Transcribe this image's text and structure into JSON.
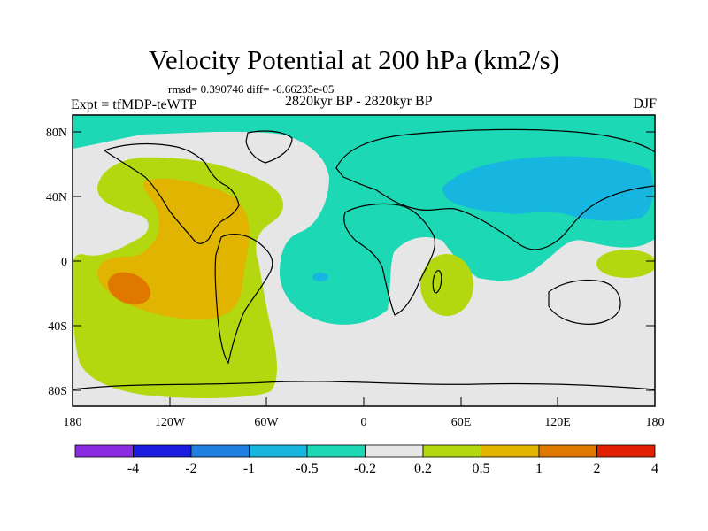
{
  "title": "Velocity Potential at 200 hPa (km2/s)",
  "stats": "rmsd= 0.390746 diff= -6.66235e-05",
  "experiment": "Expt = tfMDP-teWTP",
  "period": "2820kyr BP - 2820kyr BP",
  "season": "DJF",
  "map": {
    "projection": "cylindrical equidistant",
    "lon_range": [
      -180,
      180
    ],
    "lat_range": [
      -90,
      90
    ],
    "lat_tick_labels": [
      "80N",
      "40N",
      "0",
      "40S",
      "80S"
    ],
    "lon_tick_labels": [
      "180",
      "120W",
      "60W",
      "0",
      "60E",
      "120E",
      "180"
    ]
  },
  "colorbar": {
    "boundary_labels": [
      "-4",
      "-2",
      "-1",
      "-0.5",
      "-0.2",
      "0.2",
      "0.5",
      "1",
      "2",
      "4"
    ],
    "colors": [
      "#8a2be2",
      "#1c1ce0",
      "#1e7fe0",
      "#17b6e0",
      "#1cd8b4",
      "#e6e6e6",
      "#b4d810",
      "#e0b400",
      "#e07800",
      "#e02000"
    ]
  }
}
